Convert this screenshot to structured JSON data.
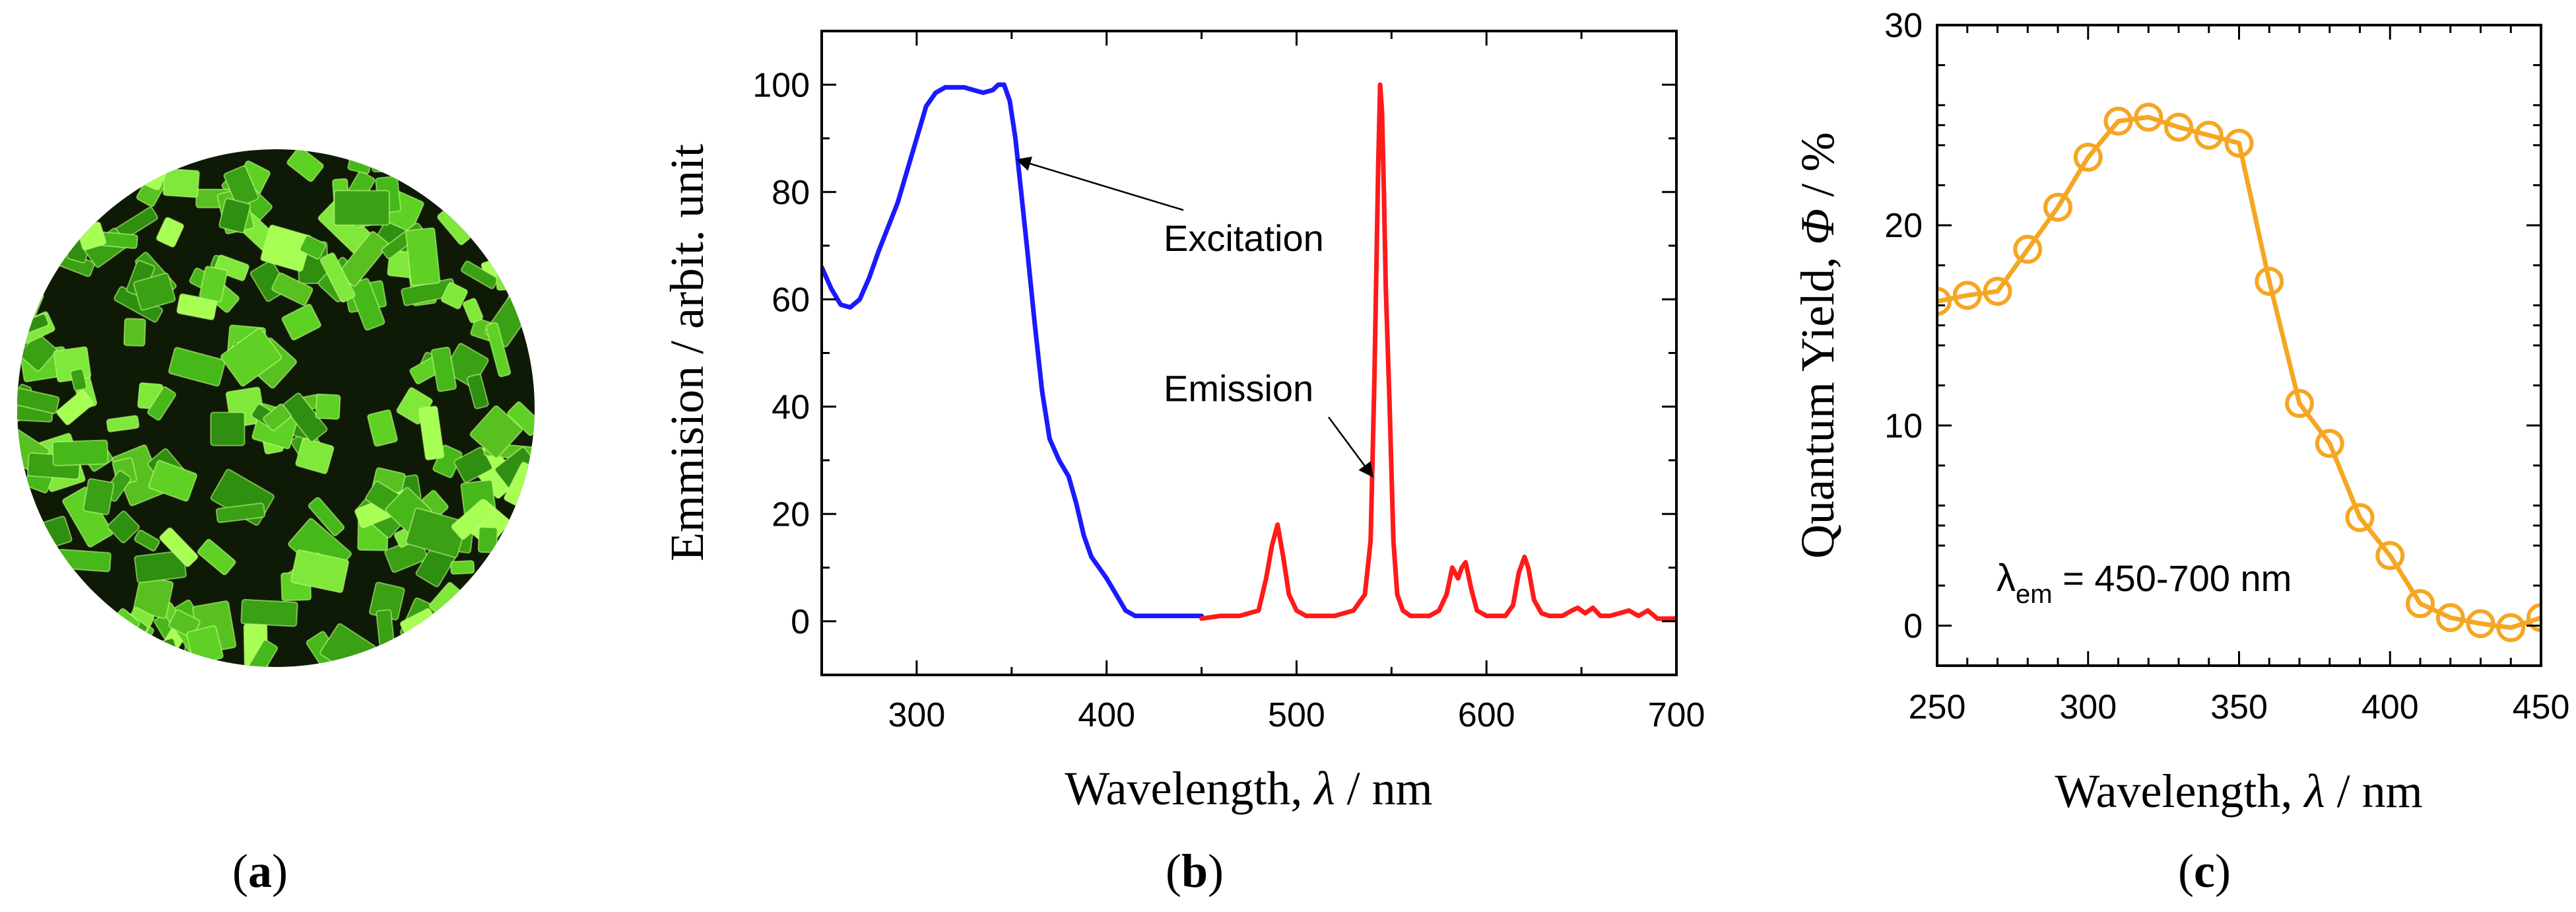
{
  "panels": {
    "a": {
      "label_pre": "(",
      "label_letter": "a",
      "label_post": ")"
    },
    "b": {
      "label_pre": "(",
      "label_letter": "b",
      "label_post": ")"
    },
    "c": {
      "label_pre": "(",
      "label_letter": "c",
      "label_post": ")"
    }
  },
  "chart_data": [
    {
      "type": "line",
      "panel": "b",
      "title": "",
      "xlabel_pre": "Wavelength, ",
      "xlabel_sym": "λ",
      "xlabel_post": " / nm",
      "ylabel": "Emmision / arbit. unit",
      "xlim": [
        250,
        700
      ],
      "ylim": [
        -10,
        110
      ],
      "xticks": [
        300,
        400,
        500,
        600,
        700
      ],
      "yticks": [
        0,
        20,
        40,
        60,
        80,
        100
      ],
      "grid": false,
      "series": [
        {
          "color": "#1a1aff",
          "x": [
            250,
            255,
            260,
            265,
            270,
            275,
            280,
            290,
            300,
            305,
            310,
            315,
            320,
            325,
            330,
            335,
            340,
            343,
            346,
            349,
            352,
            355,
            358,
            362,
            366,
            370,
            375,
            380,
            384,
            388,
            392,
            396,
            400,
            405,
            410,
            415,
            420,
            430,
            440,
            450
          ],
          "y": [
            66,
            62,
            59,
            58.5,
            60,
            64,
            69,
            78,
            90,
            96,
            98.5,
            99.5,
            99.5,
            99.5,
            99,
            98.5,
            99,
            100,
            100,
            97,
            90,
            80,
            70,
            56,
            43,
            34,
            30,
            27,
            22,
            16,
            12,
            10,
            8,
            5,
            2,
            1,
            1,
            1,
            1,
            1
          ]
        },
        {
          "color": "#ff1a1a",
          "x": [
            450,
            460,
            470,
            480,
            484,
            487,
            490,
            493,
            496,
            500,
            505,
            510,
            520,
            530,
            536,
            539,
            541,
            543,
            544,
            545,
            546,
            547,
            549,
            551,
            553,
            556,
            560,
            565,
            570,
            575,
            579,
            582,
            585,
            587,
            589,
            592,
            595,
            600,
            605,
            610,
            614,
            617,
            620,
            622,
            625,
            629,
            633,
            640,
            645,
            648,
            652,
            656,
            660,
            665,
            670,
            675,
            680,
            685,
            690,
            700
          ],
          "y": [
            0.5,
            1,
            1,
            2,
            8,
            14,
            18,
            12,
            5,
            2,
            1,
            1,
            1,
            2,
            5,
            15,
            45,
            85,
            100,
            95,
            80,
            62,
            40,
            15,
            5,
            2,
            1,
            1,
            1,
            2,
            5,
            10,
            8,
            10,
            11,
            6,
            2,
            1,
            1,
            1,
            3,
            9,
            12,
            10,
            4,
            1.5,
            1,
            1,
            2,
            2.5,
            1.5,
            2.5,
            1,
            1,
            1.5,
            2,
            1,
            2,
            0.5,
            0.5
          ]
        }
      ],
      "annotations": [
        {
          "text": "Excitation",
          "x": 430,
          "y": 69,
          "arrow_to": [
            353,
            86
          ]
        },
        {
          "text": "Emission",
          "x": 430,
          "y": 41,
          "arrow_to": [
            540,
            27
          ]
        }
      ]
    },
    {
      "type": "line",
      "panel": "c",
      "title": "",
      "xlabel_pre": "Wavelength, ",
      "xlabel_sym": "λ",
      "xlabel_post": " / nm",
      "ylabel_pre": "Quantum Yield,  ",
      "ylabel_sym": "Φ",
      "ylabel_post": " / %",
      "xlim": [
        250,
        450
      ],
      "ylim": [
        -2,
        30
      ],
      "xticks": [
        250,
        300,
        350,
        400,
        450
      ],
      "yticks": [
        0,
        10,
        20,
        30
      ],
      "grid": false,
      "series": [
        {
          "color": "#f5a623",
          "marker": "open-circle",
          "x": [
            250,
            260,
            270,
            280,
            290,
            300,
            310,
            320,
            330,
            340,
            350,
            360,
            370,
            380,
            390,
            400,
            410,
            420,
            430,
            440,
            450
          ],
          "y": [
            16.2,
            16.5,
            16.7,
            18.8,
            20.9,
            23.4,
            25.2,
            25.4,
            24.9,
            24.5,
            24.1,
            17.2,
            11.1,
            9.1,
            5.4,
            3.5,
            1.1,
            0.4,
            0.1,
            -0.1,
            0.4
          ]
        }
      ],
      "annotation": {
        "lambda": "λ",
        "sub": "em",
        "rest": " = 450-700 nm"
      }
    }
  ]
}
